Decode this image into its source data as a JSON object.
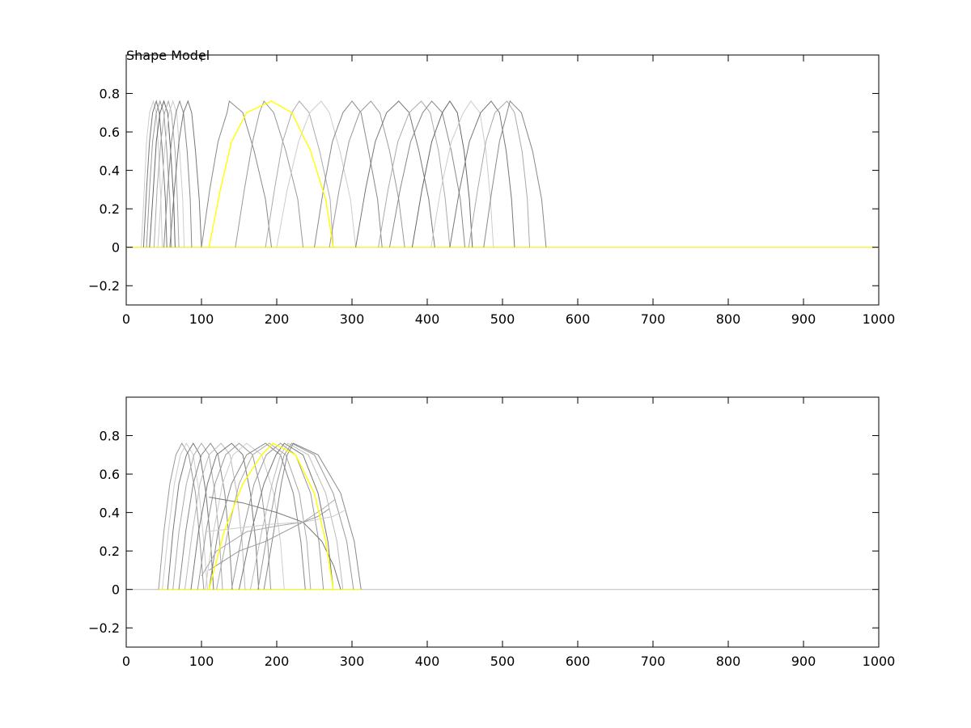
{
  "chart_data": [
    {
      "type": "line",
      "title": "Shape Model",
      "xlim": [
        0,
        1000
      ],
      "ylim": [
        -0.3,
        1.0
      ],
      "xticks": [
        0,
        100,
        200,
        300,
        400,
        500,
        600,
        700,
        800,
        900,
        1000
      ],
      "yticks": [
        -0.2,
        0,
        0.2,
        0.4,
        0.6,
        0.8
      ],
      "ytick_labels": [
        "−0.2",
        "0",
        "0.2",
        "0.4",
        "0.6",
        "0.8"
      ],
      "grid": false,
      "baseline": {
        "y": 0,
        "color": "#bbbbbb"
      },
      "highlight_color": "#ffff00",
      "series": [
        {
          "x": [
            20,
            24,
            27,
            31,
            36,
            40,
            43,
            46,
            48
          ],
          "y": [
            0,
            0.3,
            0.55,
            0.7,
            0.76,
            0.7,
            0.5,
            0.25,
            0
          ],
          "color": "#cccccc"
        },
        {
          "x": [
            23,
            27,
            31,
            35,
            40,
            44,
            48,
            52,
            54
          ],
          "y": [
            0,
            0.3,
            0.55,
            0.7,
            0.76,
            0.7,
            0.5,
            0.25,
            0
          ],
          "color": "#777777"
        },
        {
          "x": [
            27,
            31,
            35,
            40,
            45,
            50,
            54,
            58,
            60
          ],
          "y": [
            0,
            0.3,
            0.55,
            0.7,
            0.76,
            0.7,
            0.5,
            0.25,
            0
          ],
          "color": "#999999"
        },
        {
          "x": [
            31,
            36,
            40,
            45,
            50,
            55,
            59,
            63,
            65
          ],
          "y": [
            0,
            0.3,
            0.55,
            0.7,
            0.76,
            0.7,
            0.5,
            0.25,
            0
          ],
          "color": "#666666"
        },
        {
          "x": [
            37,
            41,
            46,
            51,
            56,
            60,
            65,
            68,
            70
          ],
          "y": [
            0,
            0.3,
            0.55,
            0.7,
            0.76,
            0.7,
            0.5,
            0.25,
            0
          ],
          "color": "#aaaaaa"
        },
        {
          "x": [
            42,
            47,
            52,
            57,
            62,
            67,
            71,
            75,
            77
          ],
          "y": [
            0,
            0.3,
            0.55,
            0.7,
            0.76,
            0.7,
            0.5,
            0.25,
            0
          ],
          "color": "#cccccc"
        },
        {
          "x": [
            50,
            55,
            60,
            66,
            71,
            76,
            81,
            85,
            87
          ],
          "y": [
            0,
            0.3,
            0.55,
            0.7,
            0.76,
            0.7,
            0.5,
            0.25,
            0
          ],
          "color": "#888888"
        },
        {
          "x": [
            58,
            64,
            70,
            76,
            82,
            87,
            92,
            97,
            100
          ],
          "y": [
            0,
            0.3,
            0.55,
            0.7,
            0.76,
            0.7,
            0.5,
            0.25,
            0
          ],
          "color": "#777777"
        },
        {
          "x": [
            100,
            111,
            122,
            134,
            137,
            155,
            170,
            185,
            193
          ],
          "y": [
            0,
            0.3,
            0.55,
            0.7,
            0.76,
            0.7,
            0.5,
            0.25,
            0
          ],
          "color": "#888888"
        },
        {
          "x": [
            145,
            157,
            168,
            177,
            183,
            196,
            212,
            228,
            235
          ],
          "y": [
            0,
            0.3,
            0.55,
            0.7,
            0.76,
            0.7,
            0.5,
            0.25,
            0
          ],
          "color": "#999999"
        },
        {
          "x": [
            185,
            197,
            208,
            220,
            230,
            243,
            257,
            271,
            275
          ],
          "y": [
            0,
            0.3,
            0.55,
            0.7,
            0.76,
            0.7,
            0.5,
            0.25,
            0
          ],
          "color": "#aaaaaa"
        },
        {
          "x": [
            200,
            214,
            229,
            244,
            259,
            270,
            284,
            298,
            305
          ],
          "y": [
            0,
            0.3,
            0.55,
            0.7,
            0.76,
            0.7,
            0.5,
            0.25,
            0
          ],
          "color": "#cccccc"
        },
        {
          "x": [
            250,
            262,
            274,
            288,
            300,
            312,
            322,
            334,
            340
          ],
          "y": [
            0,
            0.3,
            0.55,
            0.7,
            0.76,
            0.7,
            0.5,
            0.25,
            0
          ],
          "color": "#888888"
        },
        {
          "x": [
            270,
            283,
            296,
            310,
            325,
            337,
            350,
            362,
            370
          ],
          "y": [
            0,
            0.3,
            0.55,
            0.7,
            0.76,
            0.7,
            0.5,
            0.25,
            0
          ],
          "color": "#999999"
        },
        {
          "x": [
            305,
            318,
            331,
            346,
            362,
            376,
            389,
            402,
            410
          ],
          "y": [
            0,
            0.3,
            0.55,
            0.7,
            0.76,
            0.7,
            0.5,
            0.25,
            0
          ],
          "color": "#777777"
        },
        {
          "x": [
            335,
            348,
            361,
            376,
            392,
            404,
            415,
            424,
            430
          ],
          "y": [
            0,
            0.3,
            0.55,
            0.7,
            0.76,
            0.7,
            0.5,
            0.25,
            0
          ],
          "color": "#aaaaaa"
        },
        {
          "x": [
            350,
            364,
            378,
            394,
            406,
            420,
            432,
            444,
            450
          ],
          "y": [
            0,
            0.3,
            0.55,
            0.7,
            0.76,
            0.7,
            0.5,
            0.25,
            0
          ],
          "color": "#888888"
        },
        {
          "x": [
            380,
            393,
            406,
            420,
            430,
            440,
            449,
            456,
            460
          ],
          "y": [
            0,
            0.3,
            0.55,
            0.7,
            0.76,
            0.7,
            0.5,
            0.25,
            0
          ],
          "color": "#666666"
        },
        {
          "x": [
            405,
            418,
            432,
            448,
            458,
            470,
            478,
            484,
            488
          ],
          "y": [
            0,
            0.3,
            0.55,
            0.7,
            0.76,
            0.7,
            0.5,
            0.25,
            0
          ],
          "color": "#cccccc"
        },
        {
          "x": [
            430,
            443,
            456,
            471,
            485,
            496,
            505,
            512,
            516
          ],
          "y": [
            0,
            0.3,
            0.55,
            0.7,
            0.76,
            0.7,
            0.5,
            0.25,
            0
          ],
          "color": "#777777"
        },
        {
          "x": [
            455,
            467,
            478,
            490,
            506,
            516,
            526,
            533,
            536
          ],
          "y": [
            0,
            0.3,
            0.55,
            0.7,
            0.76,
            0.7,
            0.5,
            0.25,
            0
          ],
          "color": "#aaaaaa"
        },
        {
          "x": [
            475,
            486,
            496,
            506,
            510,
            525,
            540,
            552,
            558
          ],
          "y": [
            0,
            0.3,
            0.55,
            0.7,
            0.76,
            0.7,
            0.5,
            0.25,
            0
          ],
          "color": "#888888"
        },
        {
          "x": [
            110,
            125,
            140,
            160,
            193,
            220,
            245,
            265,
            275
          ],
          "y": [
            0,
            0.3,
            0.55,
            0.7,
            0.76,
            0.7,
            0.5,
            0.25,
            0
          ],
          "color": "#ffff00"
        }
      ]
    },
    {
      "type": "line",
      "title": "",
      "xlim": [
        0,
        1000
      ],
      "ylim": [
        -0.3,
        1.0
      ],
      "xticks": [
        0,
        100,
        200,
        300,
        400,
        500,
        600,
        700,
        800,
        900,
        1000
      ],
      "yticks": [
        -0.2,
        0,
        0.2,
        0.4,
        0.6,
        0.8
      ],
      "ytick_labels": [
        "−0.2",
        "0",
        "0.2",
        "0.4",
        "0.6",
        "0.8"
      ],
      "grid": false,
      "baseline": {
        "y": 0,
        "color": "#bbbbbb"
      },
      "highlight_color": "#ffff00",
      "series": [
        {
          "x": [
            43,
            50,
            58,
            66,
            74,
            83,
            92,
            98,
            103
          ],
          "y": [
            0,
            0.3,
            0.55,
            0.7,
            0.76,
            0.7,
            0.5,
            0.25,
            0
          ],
          "color": "#999999"
        },
        {
          "x": [
            48,
            56,
            64,
            72,
            80,
            89,
            97,
            103,
            108
          ],
          "y": [
            0,
            0.3,
            0.55,
            0.7,
            0.76,
            0.7,
            0.5,
            0.25,
            0
          ],
          "color": "#cccccc"
        },
        {
          "x": [
            55,
            62,
            70,
            80,
            89,
            98,
            106,
            112,
            116
          ],
          "y": [
            0,
            0.3,
            0.55,
            0.7,
            0.76,
            0.7,
            0.5,
            0.25,
            0
          ],
          "color": "#777777"
        },
        {
          "x": [
            62,
            70,
            80,
            90,
            100,
            110,
            118,
            124,
            128
          ],
          "y": [
            0,
            0.3,
            0.55,
            0.7,
            0.76,
            0.7,
            0.5,
            0.25,
            0
          ],
          "color": "#aaaaaa"
        },
        {
          "x": [
            70,
            79,
            89,
            100,
            112,
            122,
            131,
            137,
            141
          ],
          "y": [
            0,
            0.3,
            0.55,
            0.7,
            0.76,
            0.7,
            0.5,
            0.25,
            0
          ],
          "color": "#888888"
        },
        {
          "x": [
            78,
            88,
            98,
            110,
            126,
            138,
            147,
            154,
            158
          ],
          "y": [
            0,
            0.3,
            0.55,
            0.7,
            0.76,
            0.7,
            0.5,
            0.25,
            0
          ],
          "color": "#bbbbbb"
        },
        {
          "x": [
            86,
            96,
            108,
            120,
            140,
            155,
            165,
            172,
            176
          ],
          "y": [
            0,
            0.3,
            0.55,
            0.7,
            0.76,
            0.7,
            0.5,
            0.25,
            0
          ],
          "color": "#777777"
        },
        {
          "x": [
            95,
            106,
            118,
            132,
            150,
            168,
            180,
            188,
            192
          ],
          "y": [
            0,
            0.3,
            0.55,
            0.7,
            0.76,
            0.7,
            0.5,
            0.25,
            0
          ],
          "color": "#999999"
        },
        {
          "x": [
            105,
            116,
            128,
            142,
            160,
            180,
            196,
            205,
            210
          ],
          "y": [
            0,
            0.3,
            0.55,
            0.7,
            0.76,
            0.7,
            0.5,
            0.25,
            0
          ],
          "color": "#cccccc"
        },
        {
          "x": [
            110,
            122,
            140,
            160,
            185,
            205,
            222,
            232,
            238
          ],
          "y": [
            0,
            0.3,
            0.55,
            0.7,
            0.76,
            0.7,
            0.5,
            0.25,
            0
          ],
          "color": "#888888"
        },
        {
          "x": [
            120,
            135,
            150,
            168,
            190,
            212,
            230,
            240,
            245
          ],
          "y": [
            0,
            0.3,
            0.55,
            0.7,
            0.76,
            0.7,
            0.5,
            0.25,
            0
          ],
          "color": "#aaaaaa"
        },
        {
          "x": [
            140,
            155,
            170,
            186,
            205,
            225,
            245,
            256,
            262
          ],
          "y": [
            0,
            0.3,
            0.55,
            0.7,
            0.76,
            0.7,
            0.5,
            0.25,
            0
          ],
          "color": "#999999"
        },
        {
          "x": [
            150,
            166,
            183,
            199,
            210,
            235,
            255,
            268,
            275
          ],
          "y": [
            0,
            0.3,
            0.55,
            0.7,
            0.76,
            0.7,
            0.5,
            0.25,
            0
          ],
          "color": "#777777"
        },
        {
          "x": [
            165,
            180,
            194,
            205,
            215,
            242,
            265,
            280,
            288
          ],
          "y": [
            0,
            0.3,
            0.55,
            0.7,
            0.76,
            0.7,
            0.5,
            0.25,
            0
          ],
          "color": "#bbbbbb"
        },
        {
          "x": [
            175,
            188,
            200,
            210,
            220,
            250,
            275,
            293,
            302
          ],
          "y": [
            0,
            0.3,
            0.55,
            0.7,
            0.76,
            0.7,
            0.5,
            0.25,
            0
          ],
          "color": "#999999"
        },
        {
          "x": [
            183,
            196,
            206,
            214,
            222,
            255,
            285,
            303,
            312
          ],
          "y": [
            0,
            0.3,
            0.55,
            0.7,
            0.76,
            0.7,
            0.5,
            0.25,
            0
          ],
          "color": "#888888"
        },
        {
          "x": [
            110,
            155,
            200,
            235,
            260,
            276,
            285
          ],
          "y": [
            0.48,
            0.45,
            0.4,
            0.35,
            0.25,
            0.12,
            0
          ],
          "color": "#777777"
        },
        {
          "x": [
            100,
            120,
            160,
            200,
            235,
            265,
            278
          ],
          "y": [
            0.07,
            0.2,
            0.3,
            0.33,
            0.35,
            0.43,
            0.47
          ],
          "color": "#aaaaaa"
        },
        {
          "x": [
            105,
            150,
            195,
            235,
            275,
            290
          ],
          "y": [
            0.3,
            0.32,
            0.34,
            0.35,
            0.38,
            0.41
          ],
          "color": "#cccccc"
        },
        {
          "x": [
            110,
            150,
            185,
            210,
            235,
            255,
            270
          ],
          "y": [
            0.1,
            0.2,
            0.25,
            0.3,
            0.35,
            0.38,
            0.42
          ],
          "color": "#999999"
        },
        {
          "x": [
            110,
            130,
            155,
            180,
            195,
            225,
            250,
            265,
            275
          ],
          "y": [
            0,
            0.3,
            0.55,
            0.7,
            0.76,
            0.7,
            0.5,
            0.25,
            0
          ],
          "color": "#ffff00"
        }
      ]
    }
  ]
}
